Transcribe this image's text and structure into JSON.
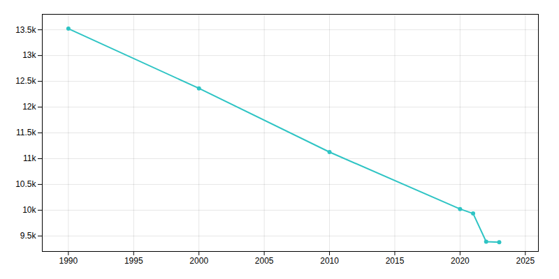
{
  "chart_data": {
    "type": "line",
    "x": [
      1990,
      2000,
      2010,
      2020,
      2021,
      2022,
      2023
    ],
    "values": [
      13521,
      12364,
      11128,
      10023,
      9936,
      9390,
      9380
    ],
    "color": "#2ec4c4",
    "marker": "o",
    "xlim": [
      1988,
      2026
    ],
    "ylim": [
      9200,
      13800
    ],
    "xticks": [
      1990,
      1995,
      2000,
      2005,
      2010,
      2015,
      2020,
      2025
    ],
    "yticks": [
      {
        "value": 9500,
        "label": "9.5k"
      },
      {
        "value": 10000,
        "label": "10k"
      },
      {
        "value": 10500,
        "label": "10.5k"
      },
      {
        "value": 11000,
        "label": "11k"
      },
      {
        "value": 11500,
        "label": "11.5k"
      },
      {
        "value": 12000,
        "label": "12k"
      },
      {
        "value": 12500,
        "label": "12.5k"
      },
      {
        "value": 13000,
        "label": "13k"
      },
      {
        "value": 13500,
        "label": "13.5k"
      }
    ],
    "grid": true
  }
}
